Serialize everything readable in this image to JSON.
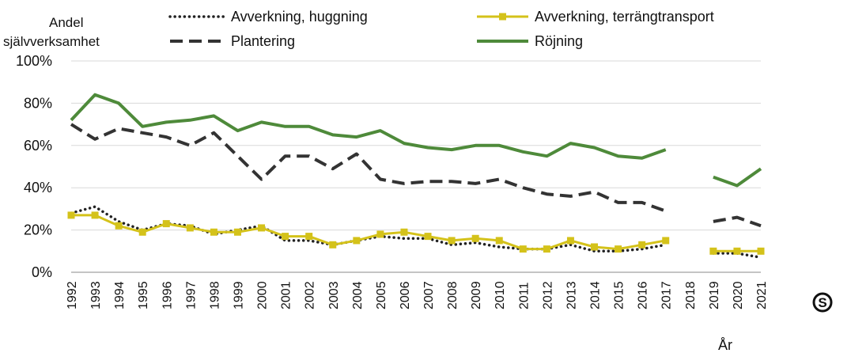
{
  "chart_data": {
    "type": "line",
    "ylabel_lines": [
      "Andel",
      "självverksamhet"
    ],
    "xlabel": "År",
    "ylim": [
      0,
      100
    ],
    "y_ticks": [
      "0%",
      "20%",
      "40%",
      "60%",
      "80%",
      "100%"
    ],
    "y_tick_values": [
      0,
      20,
      40,
      60,
      80,
      100
    ],
    "grid": "horizontal",
    "legend_position": "top",
    "x": [
      "1992",
      "1993",
      "1994",
      "1995",
      "1996",
      "1997",
      "1998",
      "1999",
      "2000",
      "2001",
      "2002",
      "2003",
      "2004",
      "2005",
      "2006",
      "2007",
      "2008",
      "2009",
      "2010",
      "2011",
      "2012",
      "2013",
      "2014",
      "2015",
      "2016",
      "2017",
      "2018",
      "2019",
      "2020",
      "2021"
    ],
    "series": [
      {
        "name": "Avverkning, huggning",
        "style": "dotted",
        "color": "#222222",
        "values": [
          28,
          31,
          24,
          20,
          23,
          22,
          18,
          20,
          22,
          15,
          15,
          13,
          15,
          17,
          16,
          16,
          13,
          14,
          12,
          11,
          11,
          13,
          10,
          10,
          11,
          13,
          null,
          9,
          9,
          7
        ]
      },
      {
        "name": "Avverkning, terrängtransport",
        "style": "solid-square-markers",
        "color": "#d4c21a",
        "values": [
          27,
          27,
          22,
          19,
          23,
          21,
          19,
          19,
          21,
          17,
          17,
          13,
          15,
          18,
          19,
          17,
          15,
          16,
          15,
          11,
          11,
          15,
          12,
          11,
          13,
          15,
          null,
          10,
          10,
          10
        ]
      },
      {
        "name": "Plantering",
        "style": "dashed",
        "color": "#333333",
        "values": [
          70,
          63,
          68,
          66,
          64,
          60,
          66,
          55,
          44,
          55,
          55,
          49,
          56,
          44,
          42,
          43,
          43,
          42,
          44,
          40,
          37,
          36,
          38,
          33,
          33,
          29,
          null,
          24,
          26,
          22
        ]
      },
      {
        "name": "Röjning",
        "style": "solid",
        "color": "#4e8a3a",
        "values": [
          72,
          84,
          80,
          69,
          71,
          72,
          74,
          67,
          71,
          69,
          69,
          65,
          64,
          67,
          61,
          59,
          58,
          60,
          60,
          57,
          55,
          61,
          59,
          55,
          54,
          58,
          null,
          45,
          41,
          49
        ]
      }
    ]
  },
  "logo": {
    "name": "Sveriges officiella statistik",
    "text": "Sveriges officiella statistik"
  }
}
